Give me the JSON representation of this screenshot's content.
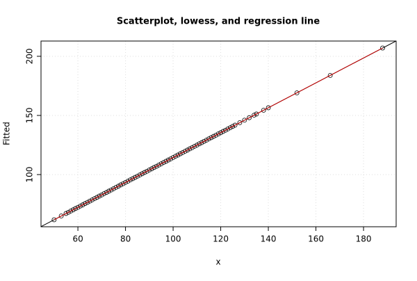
{
  "chart_data": {
    "type": "scatter",
    "title": "Scatterplot, lowess, and regression line",
    "xlabel": "x",
    "ylabel": "Fitted",
    "xlim": [
      44.5,
      193.7
    ],
    "ylim": [
      55.9,
      212.9
    ],
    "xticks": [
      60,
      80,
      100,
      120,
      140,
      160,
      180
    ],
    "yticks": [
      100,
      150,
      200
    ],
    "grid": true,
    "series": [
      {
        "color": "#000000",
        "x": [
          50,
          53,
          55,
          56,
          57,
          58,
          59,
          60,
          61,
          62,
          63,
          64,
          65,
          66,
          67,
          68,
          69,
          70,
          71,
          72,
          73,
          74,
          75,
          76,
          77,
          78,
          79,
          80,
          81,
          82,
          83,
          84,
          85,
          86,
          87,
          88,
          89,
          90,
          91,
          92,
          93,
          94,
          95,
          96,
          97,
          98,
          99,
          100,
          101,
          102,
          103,
          104,
          105,
          106,
          107,
          108,
          109,
          110,
          111,
          112,
          113,
          114,
          115,
          116,
          117,
          118,
          119,
          120,
          121,
          122,
          123,
          124,
          125,
          126,
          128,
          130,
          132,
          134,
          135,
          138,
          140,
          152,
          166,
          188
        ],
        "y": [
          61.8,
          65.0,
          67.1,
          68.1,
          69.2,
          70.2,
          71.3,
          72.3,
          73.4,
          74.4,
          75.5,
          76.5,
          77.6,
          78.6,
          79.7,
          80.7,
          81.8,
          82.8,
          83.9,
          84.9,
          86.0,
          87.0,
          88.1,
          89.2,
          90.2,
          91.3,
          92.3,
          93.4,
          94.4,
          95.5,
          96.5,
          97.6,
          98.6,
          99.7,
          100.7,
          101.8,
          102.8,
          103.9,
          104.9,
          106.0,
          107.0,
          108.1,
          109.1,
          110.2,
          111.2,
          112.3,
          113.3,
          114.4,
          115.5,
          116.5,
          117.6,
          118.6,
          119.7,
          120.7,
          121.8,
          122.8,
          123.9,
          124.9,
          126.0,
          127.0,
          128.1,
          129.1,
          130.2,
          131.2,
          132.3,
          133.3,
          134.4,
          135.4,
          136.5,
          137.5,
          138.6,
          139.6,
          140.7,
          141.8,
          143.9,
          146.0,
          148.1,
          150.2,
          151.2,
          154.4,
          156.5,
          169.1,
          183.8,
          207.0
        ]
      }
    ],
    "lowess": {
      "color": "#cc0000",
      "x": [
        50,
        100,
        140,
        188
      ],
      "y": [
        61.8,
        114.4,
        156.5,
        207.0
      ]
    },
    "regression": {
      "color": "#000000",
      "intercept": 9.2,
      "slope": 1.052
    }
  }
}
